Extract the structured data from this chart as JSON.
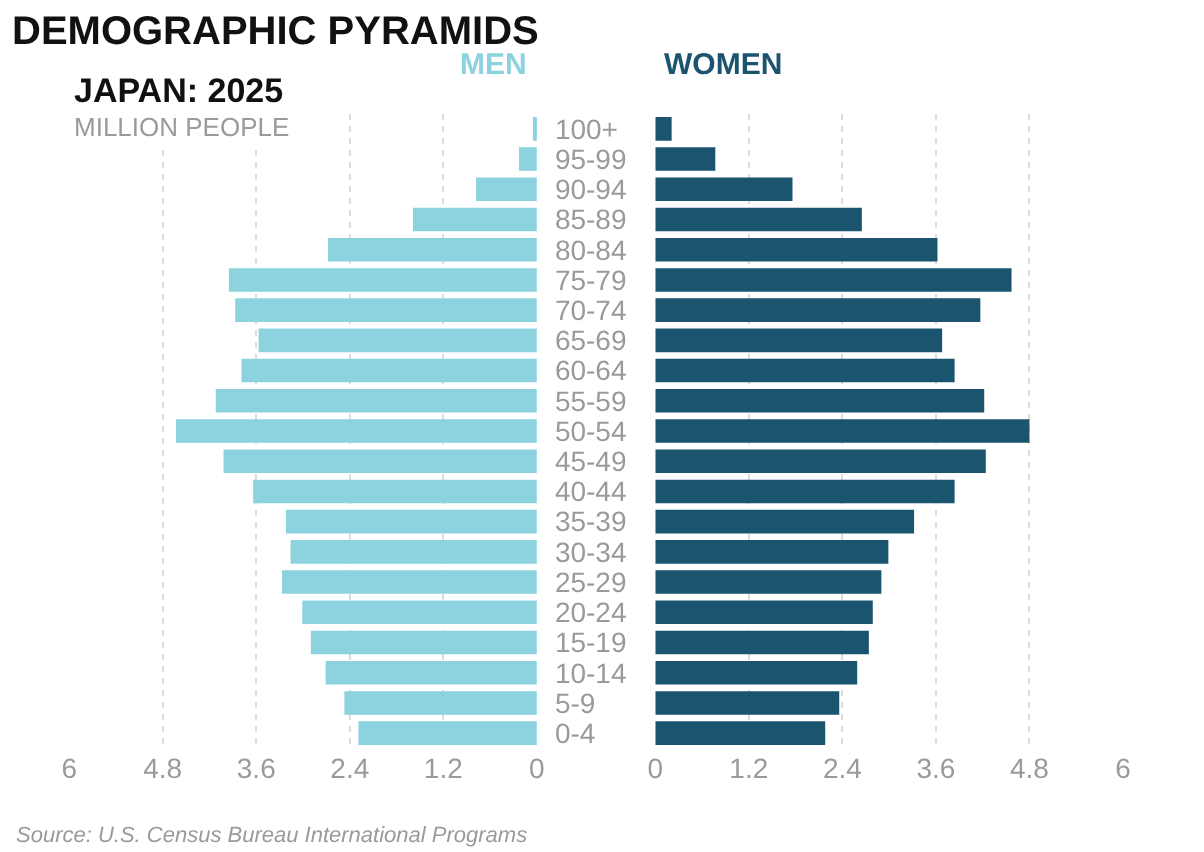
{
  "chart_data": [
    {
      "type": "bar",
      "orientation": "horizontal",
      "title": "DEMOGRAPHIC PYRAMIDS",
      "subtitle": "JAPAN: 2025",
      "annotations": [
        "MILLION PEOPLE",
        "Source: U.S. Census Bureau International Programs"
      ],
      "categories": [
        "100+",
        "95-99",
        "90-94",
        "85-89",
        "80-84",
        "75-79",
        "70-74",
        "65-69",
        "60-64",
        "55-59",
        "50-54",
        "45-49",
        "40-44",
        "35-39",
        "30-34",
        "25-29",
        "20-24",
        "15-19",
        "10-14",
        "5-9",
        "0-4"
      ],
      "series": [
        {
          "name": "MEN",
          "color": "#8cd3df",
          "values": [
            0.05,
            0.23,
            0.78,
            1.59,
            2.68,
            3.95,
            3.87,
            3.57,
            3.79,
            4.12,
            4.63,
            4.02,
            3.64,
            3.22,
            3.16,
            3.27,
            3.01,
            2.9,
            2.71,
            2.47,
            2.29
          ]
        }
      ],
      "xlim": [
        6,
        0
      ],
      "xticks": [
        6,
        4.8,
        3.6,
        2.4,
        1.2,
        0
      ],
      "grid": "x",
      "legend": false
    },
    {
      "type": "bar",
      "orientation": "horizontal",
      "categories": [
        null,
        null,
        null,
        null,
        null,
        null,
        null,
        null,
        null,
        null,
        null,
        null,
        null,
        null,
        null,
        null,
        null,
        null,
        null,
        null,
        null
      ],
      "series": [
        {
          "name": "WOMEN",
          "color": "#1a546e",
          "values": [
            0.21,
            0.77,
            1.76,
            2.65,
            3.62,
            4.57,
            4.17,
            3.68,
            3.84,
            4.22,
            4.8,
            4.24,
            3.84,
            3.32,
            2.99,
            2.9,
            2.79,
            2.74,
            2.59,
            2.36,
            2.18
          ]
        }
      ],
      "xlim": [
        0,
        6
      ],
      "xticks": [
        0,
        1.2,
        2.4,
        3.6,
        4.8,
        6
      ],
      "grid": "x",
      "legend": false,
      "tick_labels": "x"
    }
  ]
}
